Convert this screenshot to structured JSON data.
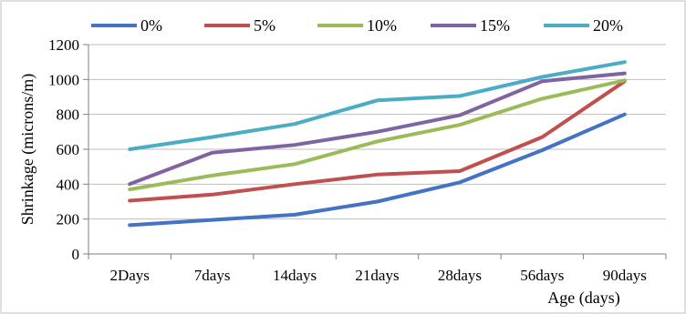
{
  "chart_data": {
    "type": "line",
    "title": "",
    "xlabel": "Age (days)",
    "ylabel": "Shrinkage (microns/m)",
    "categories": [
      "2Days",
      "7days",
      "14days",
      "21days",
      "28days",
      "56days",
      "90days"
    ],
    "ylim": [
      0,
      1200
    ],
    "yticks": [
      0,
      200,
      400,
      600,
      800,
      1000,
      1200
    ],
    "grid": "horizontal",
    "legend_position": "top",
    "series": [
      {
        "name": "0%",
        "color": "#4472C4",
        "values": [
          165,
          195,
          225,
          300,
          410,
          595,
          800
        ]
      },
      {
        "name": "5%",
        "color": "#C0504D",
        "values": [
          305,
          340,
          400,
          455,
          475,
          670,
          990
        ]
      },
      {
        "name": "10%",
        "color": "#9BBB59",
        "values": [
          370,
          450,
          515,
          645,
          740,
          890,
          995
        ]
      },
      {
        "name": "15%",
        "color": "#8064A2",
        "values": [
          400,
          580,
          625,
          700,
          795,
          990,
          1035
        ]
      },
      {
        "name": "20%",
        "color": "#4BACC6",
        "values": [
          600,
          670,
          745,
          880,
          905,
          1015,
          1100
        ]
      }
    ]
  }
}
